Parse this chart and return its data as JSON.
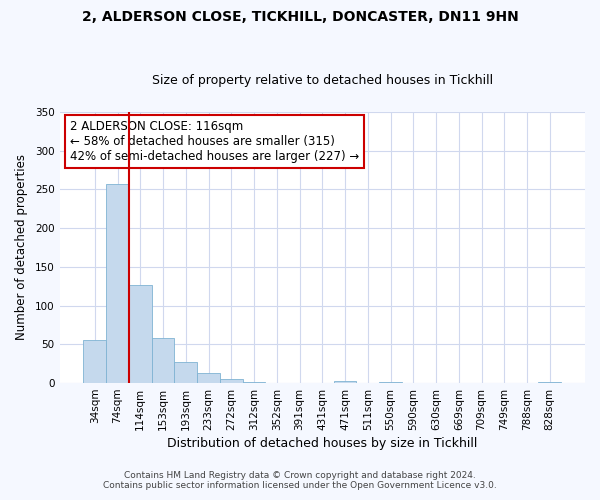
{
  "title_line1": "2, ALDERSON CLOSE, TICKHILL, DONCASTER, DN11 9HN",
  "title_line2": "Size of property relative to detached houses in Tickhill",
  "xlabel": "Distribution of detached houses by size in Tickhill",
  "ylabel": "Number of detached properties",
  "bar_labels": [
    "34sqm",
    "74sqm",
    "114sqm",
    "153sqm",
    "193sqm",
    "233sqm",
    "272sqm",
    "312sqm",
    "352sqm",
    "391sqm",
    "431sqm",
    "471sqm",
    "511sqm",
    "550sqm",
    "590sqm",
    "630sqm",
    "669sqm",
    "709sqm",
    "749sqm",
    "788sqm",
    "828sqm"
  ],
  "bar_values": [
    55,
    257,
    127,
    58,
    27,
    13,
    5,
    2,
    0,
    0,
    0,
    3,
    0,
    2,
    0,
    0,
    0,
    0,
    0,
    0,
    2
  ],
  "bar_color": "#c5d9ed",
  "bar_edgecolor": "#7fb3d3",
  "vline_color": "#cc0000",
  "vline_position": 1.5,
  "ylim": [
    0,
    350
  ],
  "yticks": [
    0,
    50,
    100,
    150,
    200,
    250,
    300,
    350
  ],
  "annotation_text": "2 ALDERSON CLOSE: 116sqm\n← 58% of detached houses are smaller (315)\n42% of semi-detached houses are larger (227) →",
  "annotation_box_edgecolor": "#cc0000",
  "annotation_box_facecolor": "#ffffff",
  "footer_line1": "Contains HM Land Registry data © Crown copyright and database right 2024.",
  "footer_line2": "Contains public sector information licensed under the Open Government Licence v3.0.",
  "plot_bg_color": "#ffffff",
  "fig_bg_color": "#f5f8ff",
  "grid_color": "#d0d8ee",
  "title1_fontsize": 10,
  "title2_fontsize": 9,
  "xlabel_fontsize": 9,
  "ylabel_fontsize": 8.5,
  "tick_fontsize": 7.5,
  "annotation_fontsize": 8.5,
  "footer_fontsize": 6.5
}
